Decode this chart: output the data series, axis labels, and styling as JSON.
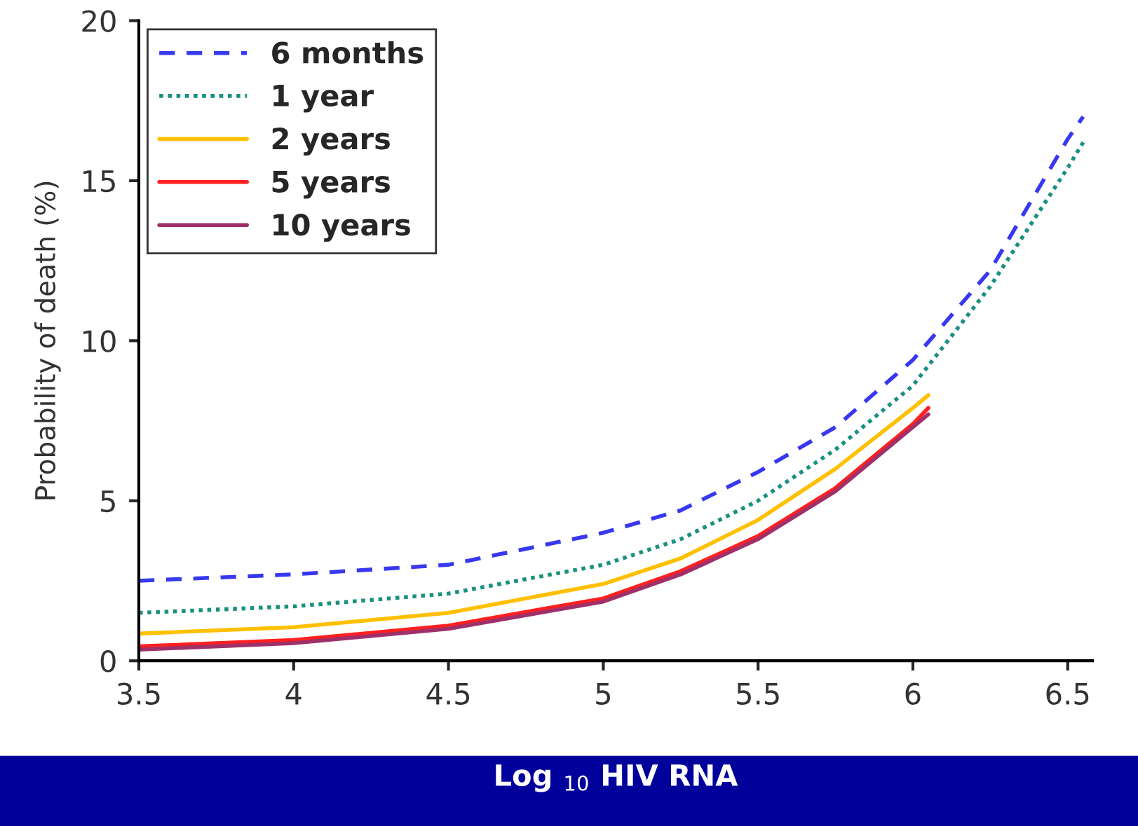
{
  "chart_data": {
    "type": "line",
    "xlabel": "Log $_{10}$ HIV RNA",
    "ylabel": "Probability of death (%)",
    "xlim": [
      3.5,
      6.58
    ],
    "xticks": [
      3.5,
      4,
      4.5,
      5,
      5.5,
      6,
      6.5
    ],
    "ylim": [
      0,
      20
    ],
    "yticks": [
      0,
      5,
      10,
      15,
      20
    ],
    "grid": false,
    "legend": "top left",
    "marker": "none",
    "series": [
      {
        "name": "6 months",
        "color": "#3838f0",
        "line_style": "dashed",
        "x": [
          3.5,
          4,
          4.5,
          5,
          5.25,
          5.5,
          5.75,
          6,
          6.25,
          6.5,
          6.55
        ],
        "values": [
          2.5,
          2.7,
          3.0,
          4.0,
          4.7,
          5.9,
          7.3,
          9.4,
          12.2,
          16.3,
          17.0
        ]
      },
      {
        "name": "1 year",
        "color": "#1a9080",
        "line_style": "dotted",
        "x": [
          3.5,
          4,
          4.5,
          5,
          5.25,
          5.5,
          5.75,
          6,
          6.25,
          6.5,
          6.55
        ],
        "values": [
          1.5,
          1.7,
          2.1,
          3.0,
          3.8,
          5.0,
          6.6,
          8.6,
          11.7,
          15.4,
          16.2
        ]
      },
      {
        "name": "2 years",
        "color": "#ffc000",
        "line_style": "solid",
        "x": [
          3.5,
          4,
          4.5,
          5,
          5.25,
          5.5,
          5.75,
          6,
          6.05
        ],
        "values": [
          0.85,
          1.05,
          1.5,
          2.4,
          3.2,
          4.4,
          6.0,
          7.9,
          8.3
        ]
      },
      {
        "name": "5 years",
        "color": "#ff2020",
        "line_style": "solid",
        "x": [
          3.5,
          4,
          4.5,
          5,
          5.25,
          5.5,
          5.75,
          6,
          6.05
        ],
        "values": [
          0.45,
          0.65,
          1.1,
          1.95,
          2.8,
          3.9,
          5.4,
          7.4,
          7.9
        ]
      },
      {
        "name": "10 years",
        "color": "#a0306a",
        "line_style": "solid",
        "x": [
          3.5,
          4,
          4.5,
          5,
          5.25,
          5.5,
          5.75,
          6,
          6.05
        ],
        "values": [
          0.35,
          0.55,
          1.0,
          1.85,
          2.7,
          3.8,
          5.3,
          7.3,
          7.7
        ]
      }
    ]
  }
}
